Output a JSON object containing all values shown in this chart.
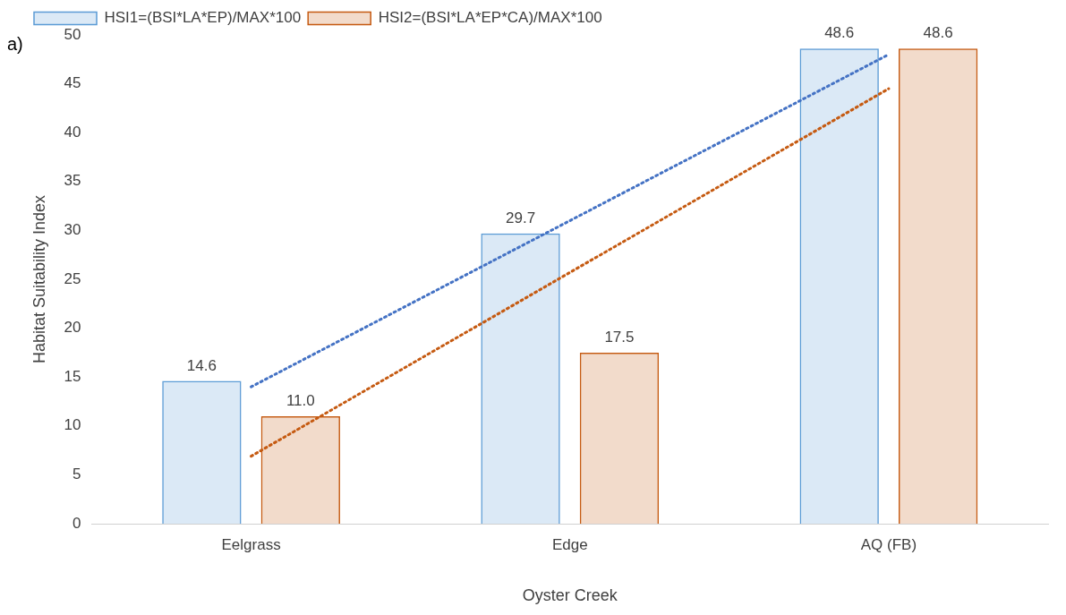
{
  "chart_data": {
    "type": "bar",
    "categories": [
      "Eelgrass",
      "Edge",
      "AQ (FB)"
    ],
    "xlabel": "Oyster Creek",
    "ylabel": "Habitat Suitability Index",
    "series": [
      {
        "name": "HSI1=(BSI*LA*EP)/MAX*100",
        "color": "#5b9bd5",
        "values": [
          14.6,
          29.7,
          48.6
        ],
        "value_labels": [
          "14.6",
          "29.7",
          "48.6"
        ]
      },
      {
        "name": "HSI2=(BSI*LA*EP*CA)/MAX*100",
        "color": "#c55a11",
        "values": [
          11.0,
          17.5,
          48.6
        ],
        "value_labels": [
          "11.0",
          "17.5",
          "48.6"
        ]
      },
      {
        "type": "line",
        "color": "#4472c4",
        "x": [
          "Eelgrass",
          "AQ (FB)"
        ],
        "values": [
          14.0,
          48.0
        ],
        "line_style": "dotted",
        "marker": "none"
      },
      {
        "type": "line",
        "color": "#c55a11",
        "x": [
          "Eelgrass",
          "AQ (FB)"
        ],
        "values": [
          6.9,
          44.5
        ],
        "line_style": "dotted",
        "marker": "none"
      }
    ],
    "ylim": [
      0,
      50
    ],
    "yticks": [
      0,
      5,
      10,
      15,
      20,
      25,
      30,
      35,
      40,
      45,
      50
    ],
    "grid": false,
    "legend": "top left",
    "annotations": [
      "a)"
    ]
  }
}
